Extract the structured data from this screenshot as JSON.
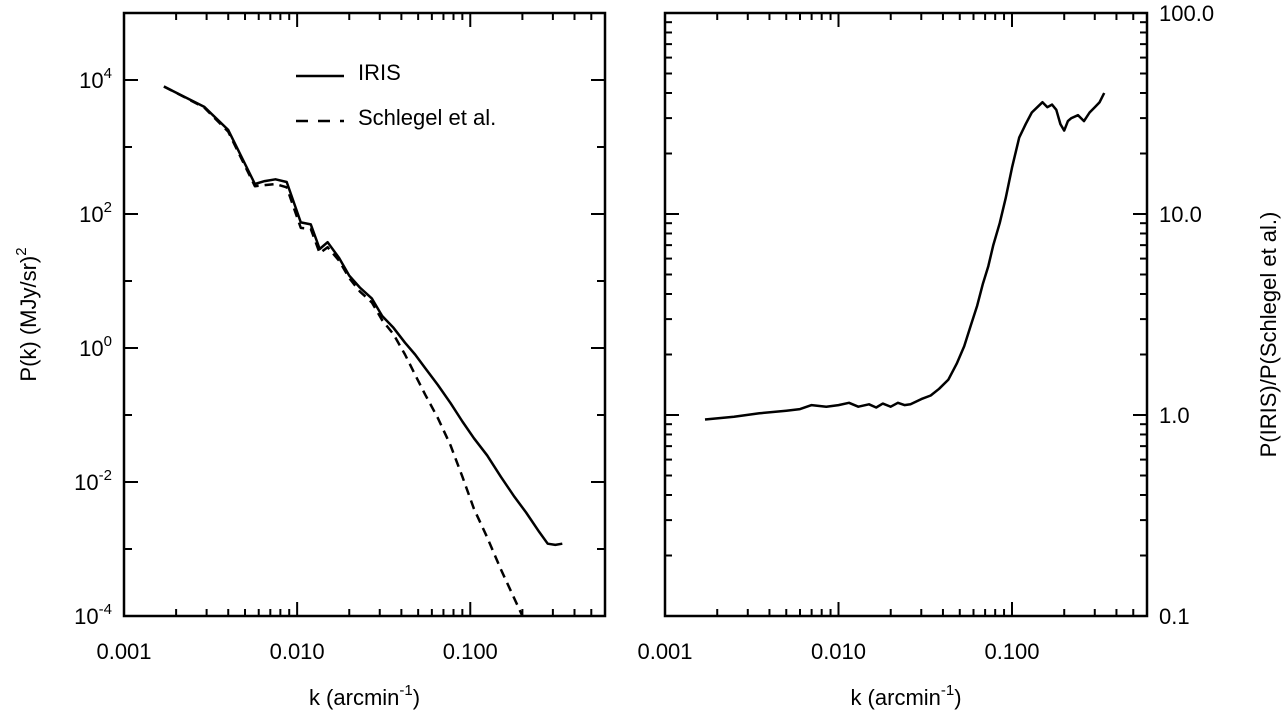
{
  "chart_data": [
    {
      "type": "line",
      "x_scale": "log",
      "y_scale": "log",
      "xlim": [
        0.001,
        0.6
      ],
      "ylim": [
        0.0001,
        100000
      ],
      "xticks": [
        {
          "value": 0.001,
          "label": "0.001"
        },
        {
          "value": 0.01,
          "label": "0.010"
        },
        {
          "value": 0.1,
          "label": "0.100"
        }
      ],
      "yticks": [
        {
          "value": 0.0001,
          "base": "10",
          "exp": "-4"
        },
        {
          "value": 0.01,
          "base": "10",
          "exp": "-2"
        },
        {
          "value": 1,
          "base": "10",
          "exp": "0"
        },
        {
          "value": 100,
          "base": "10",
          "exp": "2"
        },
        {
          "value": 10000,
          "base": "10",
          "exp": "4"
        }
      ],
      "xlabel": {
        "prefix": "k  (arcmin",
        "sup": "-1",
        "suffix": ")"
      },
      "ylabel": {
        "prefix": "P(k)  (MJy/sr)",
        "sup": "2"
      },
      "legend": {
        "placement": "top-center"
      },
      "grid": false,
      "series": [
        {
          "name": "IRIS",
          "style": "solid",
          "x": [
            0.0017,
            0.0029,
            0.004,
            0.0057,
            0.0065,
            0.0075,
            0.0087,
            0.0105,
            0.012,
            0.0135,
            0.015,
            0.0175,
            0.02,
            0.023,
            0.027,
            0.031,
            0.036,
            0.042,
            0.048,
            0.055,
            0.065,
            0.077,
            0.09,
            0.105,
            0.125,
            0.15,
            0.18,
            0.21,
            0.25,
            0.28,
            0.31,
            0.34
          ],
          "y": [
            8000,
            4000,
            1800,
            280,
            310,
            330,
            300,
            75,
            70,
            30,
            38,
            22,
            12,
            8,
            5.5,
            3,
            2,
            1.2,
            0.8,
            0.5,
            0.28,
            0.15,
            0.08,
            0.045,
            0.025,
            0.012,
            0.006,
            0.0035,
            0.0018,
            0.0012,
            0.00115,
            0.0012
          ]
        },
        {
          "name": "Schlegel et al.",
          "style": "dashed",
          "x": [
            0.0017,
            0.0029,
            0.004,
            0.0057,
            0.0065,
            0.0075,
            0.0087,
            0.0105,
            0.012,
            0.0135,
            0.015,
            0.0175,
            0.02,
            0.023,
            0.027,
            0.031,
            0.036,
            0.042,
            0.048,
            0.055,
            0.065,
            0.077,
            0.09,
            0.105,
            0.125,
            0.15,
            0.18,
            0.2
          ],
          "y": [
            8000,
            3900,
            1700,
            260,
            270,
            280,
            250,
            62,
            60,
            26,
            32,
            20,
            11,
            7,
            4.8,
            2.6,
            1.6,
            0.8,
            0.4,
            0.2,
            0.09,
            0.035,
            0.012,
            0.004,
            0.0015,
            0.0005,
            0.00018,
            0.0001
          ]
        }
      ]
    },
    {
      "type": "line",
      "x_scale": "log",
      "y_scale": "log",
      "xlim": [
        0.001,
        0.6
      ],
      "ylim": [
        0.1,
        100
      ],
      "xticks": [
        {
          "value": 0.001,
          "label": "0.001"
        },
        {
          "value": 0.01,
          "label": "0.010"
        },
        {
          "value": 0.1,
          "label": "0.100"
        }
      ],
      "yticks": [
        {
          "value": 0.1,
          "label": "0.1"
        },
        {
          "value": 1,
          "label": "1.0"
        },
        {
          "value": 10,
          "label": "10.0"
        },
        {
          "value": 100,
          "label": "100.0"
        }
      ],
      "xlabel": {
        "prefix": "k  (arcmin",
        "sup": "-1",
        "suffix": ")"
      },
      "ylabel": "P(IRIS)/P(Schlegel et al.)",
      "grid": false,
      "series": [
        {
          "style": "solid",
          "x": [
            0.0017,
            0.0025,
            0.0035,
            0.005,
            0.006,
            0.007,
            0.0085,
            0.01,
            0.0115,
            0.013,
            0.015,
            0.0165,
            0.018,
            0.02,
            0.022,
            0.024,
            0.026,
            0.03,
            0.034,
            0.038,
            0.043,
            0.048,
            0.053,
            0.058,
            0.063,
            0.068,
            0.073,
            0.078,
            0.085,
            0.092,
            0.1,
            0.11,
            0.12,
            0.13,
            0.14,
            0.15,
            0.16,
            0.17,
            0.18,
            0.19,
            0.2,
            0.21,
            0.22,
            0.24,
            0.26,
            0.28,
            0.3,
            0.32,
            0.34
          ],
          "y": [
            0.95,
            0.98,
            1.02,
            1.05,
            1.07,
            1.12,
            1.1,
            1.12,
            1.15,
            1.1,
            1.13,
            1.09,
            1.14,
            1.1,
            1.15,
            1.12,
            1.13,
            1.2,
            1.25,
            1.35,
            1.5,
            1.8,
            2.2,
            2.8,
            3.5,
            4.5,
            5.5,
            7,
            9,
            12,
            17,
            24,
            28,
            32,
            34,
            36,
            34,
            35,
            33,
            28,
            26,
            29,
            30,
            31,
            29,
            32,
            34,
            36,
            40
          ]
        }
      ]
    }
  ]
}
